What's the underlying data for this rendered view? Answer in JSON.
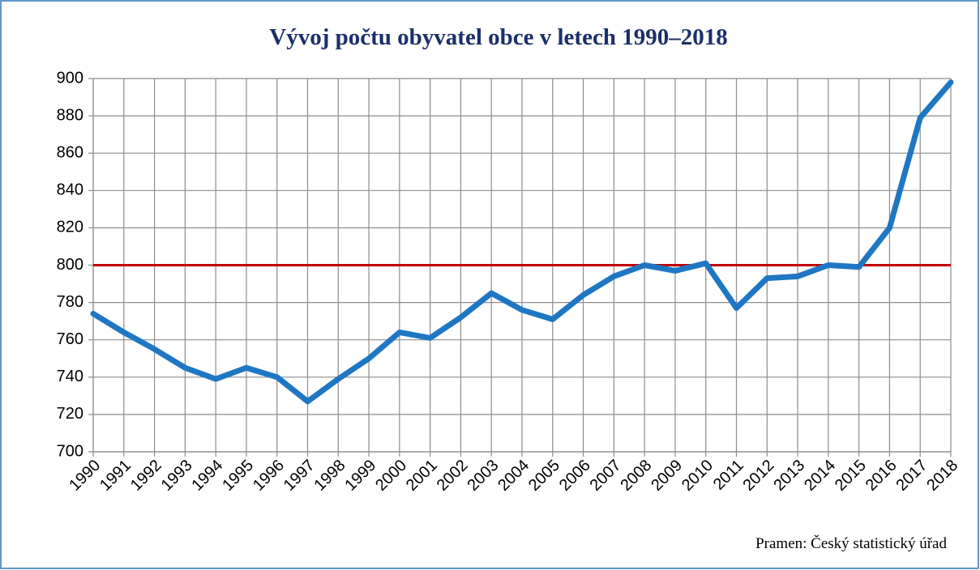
{
  "chart_data": {
    "type": "line",
    "title": "Vývoj počtu obyvatel obce v letech 1990–2018",
    "source": "Pramen: Český statistický úřad",
    "categories": [
      "1990",
      "1991",
      "1992",
      "1993",
      "1994",
      "1995",
      "1996",
      "1997",
      "1998",
      "1999",
      "2000",
      "2001",
      "2002",
      "2003",
      "2004",
      "2005",
      "2006",
      "2007",
      "2008",
      "2009",
      "2010",
      "2011",
      "2012",
      "2013",
      "2014",
      "2015",
      "2016",
      "2017",
      "2018"
    ],
    "series": [
      {
        "color": "#1f77c4",
        "values": [
          774,
          764,
          755,
          745,
          739,
          745,
          740,
          727,
          739,
          750,
          764,
          761,
          772,
          785,
          776,
          771,
          784,
          794,
          800,
          797,
          801,
          777,
          793,
          794,
          800,
          799,
          820,
          879,
          898
        ]
      }
    ],
    "reference_line": {
      "value": 800,
      "color": "#c00000"
    },
    "ylim": [
      700,
      900
    ],
    "yticks": [
      700,
      720,
      740,
      760,
      780,
      800,
      820,
      840,
      860,
      880,
      900
    ],
    "grid": true
  }
}
